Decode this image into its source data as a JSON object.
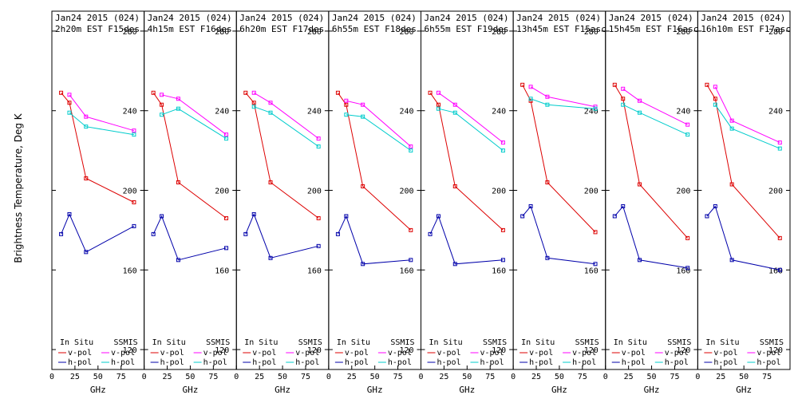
{
  "chart_data": {
    "type": "line",
    "ylabel": "Brightness Temperature, Deg K",
    "xlabel": "GHz",
    "ylim": [
      110,
      290
    ],
    "xlim": [
      0,
      100
    ],
    "yticks": [
      120,
      160,
      200,
      240,
      280
    ],
    "xticks": [
      0,
      25,
      50,
      75
    ],
    "grid": false,
    "legend": {
      "placement": "bottom",
      "group_left": "In Situ",
      "group_right": "SSMIS",
      "vpol_label": "v-pol",
      "hpol_label": "h-pol"
    },
    "colors": {
      "insitu_v": "#dd0000",
      "insitu_h": "#0000aa",
      "ssmis_v": "#ff00ff",
      "ssmis_h": "#00cccc"
    },
    "panels": [
      {
        "title_line1": "Jan24 2015 (024)",
        "title_line2": "2h20m EST F15des",
        "insitu_v": {
          "x": [
            10,
            19,
            37,
            89
          ],
          "y": [
            249,
            244,
            206,
            194
          ]
        },
        "insitu_h": {
          "x": [
            10,
            19,
            37,
            89
          ],
          "y": [
            178,
            188,
            169,
            182
          ]
        },
        "ssmis_v": {
          "x": [
            19,
            37,
            89
          ],
          "y": [
            248,
            237,
            230
          ]
        },
        "ssmis_h": {
          "x": [
            19,
            37,
            89
          ],
          "y": [
            239,
            232,
            228
          ]
        }
      },
      {
        "title_line1": "Jan24 2015 (024)",
        "title_line2": "4h15m EST F16des",
        "insitu_v": {
          "x": [
            10,
            19,
            37,
            89
          ],
          "y": [
            249,
            243,
            204,
            186
          ]
        },
        "insitu_h": {
          "x": [
            10,
            19,
            37,
            89
          ],
          "y": [
            178,
            187,
            165,
            171
          ]
        },
        "ssmis_v": {
          "x": [
            19,
            37,
            89
          ],
          "y": [
            248,
            246,
            228
          ]
        },
        "ssmis_h": {
          "x": [
            19,
            37,
            89
          ],
          "y": [
            238,
            241,
            226
          ]
        }
      },
      {
        "title_line1": "Jan24 2015 (024)",
        "title_line2": "6h20m EST F17des",
        "insitu_v": {
          "x": [
            10,
            19,
            37,
            89
          ],
          "y": [
            249,
            244,
            204,
            186
          ]
        },
        "insitu_h": {
          "x": [
            10,
            19,
            37,
            89
          ],
          "y": [
            178,
            188,
            166,
            172
          ]
        },
        "ssmis_v": {
          "x": [
            19,
            37,
            89
          ],
          "y": [
            249,
            244,
            226
          ]
        },
        "ssmis_h": {
          "x": [
            19,
            37,
            89
          ],
          "y": [
            242,
            239,
            222
          ]
        }
      },
      {
        "title_line1": "Jan24 2015 (024)",
        "title_line2": "6h55m EST F18des",
        "insitu_v": {
          "x": [
            10,
            19,
            37,
            89
          ],
          "y": [
            249,
            243,
            202,
            180
          ]
        },
        "insitu_h": {
          "x": [
            10,
            19,
            37,
            89
          ],
          "y": [
            178,
            187,
            163,
            165
          ]
        },
        "ssmis_v": {
          "x": [
            19,
            37,
            89
          ],
          "y": [
            245,
            243,
            222
          ]
        },
        "ssmis_h": {
          "x": [
            19,
            37,
            89
          ],
          "y": [
            238,
            237,
            220
          ]
        }
      },
      {
        "title_line1": "Jan24 2015 (024)",
        "title_line2": "6h55m EST F19des",
        "insitu_v": {
          "x": [
            10,
            19,
            37,
            89
          ],
          "y": [
            249,
            243,
            202,
            180
          ]
        },
        "insitu_h": {
          "x": [
            10,
            19,
            37,
            89
          ],
          "y": [
            178,
            187,
            163,
            165
          ]
        },
        "ssmis_v": {
          "x": [
            19,
            37,
            89
          ],
          "y": [
            249,
            243,
            224
          ]
        },
        "ssmis_h": {
          "x": [
            19,
            37,
            89
          ],
          "y": [
            241,
            239,
            220
          ]
        }
      },
      {
        "title_line1": "Jan24 2015 (024)",
        "title_line2": "13h45m EST F15asc",
        "insitu_v": {
          "x": [
            10,
            19,
            37,
            89
          ],
          "y": [
            253,
            245,
            204,
            179
          ]
        },
        "insitu_h": {
          "x": [
            10,
            19,
            37,
            89
          ],
          "y": [
            187,
            192,
            166,
            163
          ]
        },
        "ssmis_v": {
          "x": [
            19,
            37,
            89
          ],
          "y": [
            252,
            247,
            242
          ]
        },
        "ssmis_h": {
          "x": [
            19,
            37,
            89
          ],
          "y": [
            246,
            243,
            241
          ]
        }
      },
      {
        "title_line1": "Jan24 2015 (024)",
        "title_line2": "15h45m EST F16asc",
        "insitu_v": {
          "x": [
            10,
            19,
            37,
            89
          ],
          "y": [
            253,
            246,
            203,
            176
          ]
        },
        "insitu_h": {
          "x": [
            10,
            19,
            37,
            89
          ],
          "y": [
            187,
            192,
            165,
            161
          ]
        },
        "ssmis_v": {
          "x": [
            19,
            37,
            89
          ],
          "y": [
            251,
            245,
            233
          ]
        },
        "ssmis_h": {
          "x": [
            19,
            37,
            89
          ],
          "y": [
            243,
            239,
            228
          ]
        }
      },
      {
        "title_line1": "Jan24 2015 (024)",
        "title_line2": "16h10m EST F17asc",
        "insitu_v": {
          "x": [
            10,
            19,
            37,
            89
          ],
          "y": [
            253,
            246,
            203,
            176
          ]
        },
        "insitu_h": {
          "x": [
            10,
            19,
            37,
            89
          ],
          "y": [
            187,
            192,
            165,
            160
          ]
        },
        "ssmis_v": {
          "x": [
            19,
            37,
            89
          ],
          "y": [
            252,
            235,
            224
          ]
        },
        "ssmis_h": {
          "x": [
            19,
            37,
            89
          ],
          "y": [
            243,
            231,
            221
          ]
        }
      }
    ]
  }
}
